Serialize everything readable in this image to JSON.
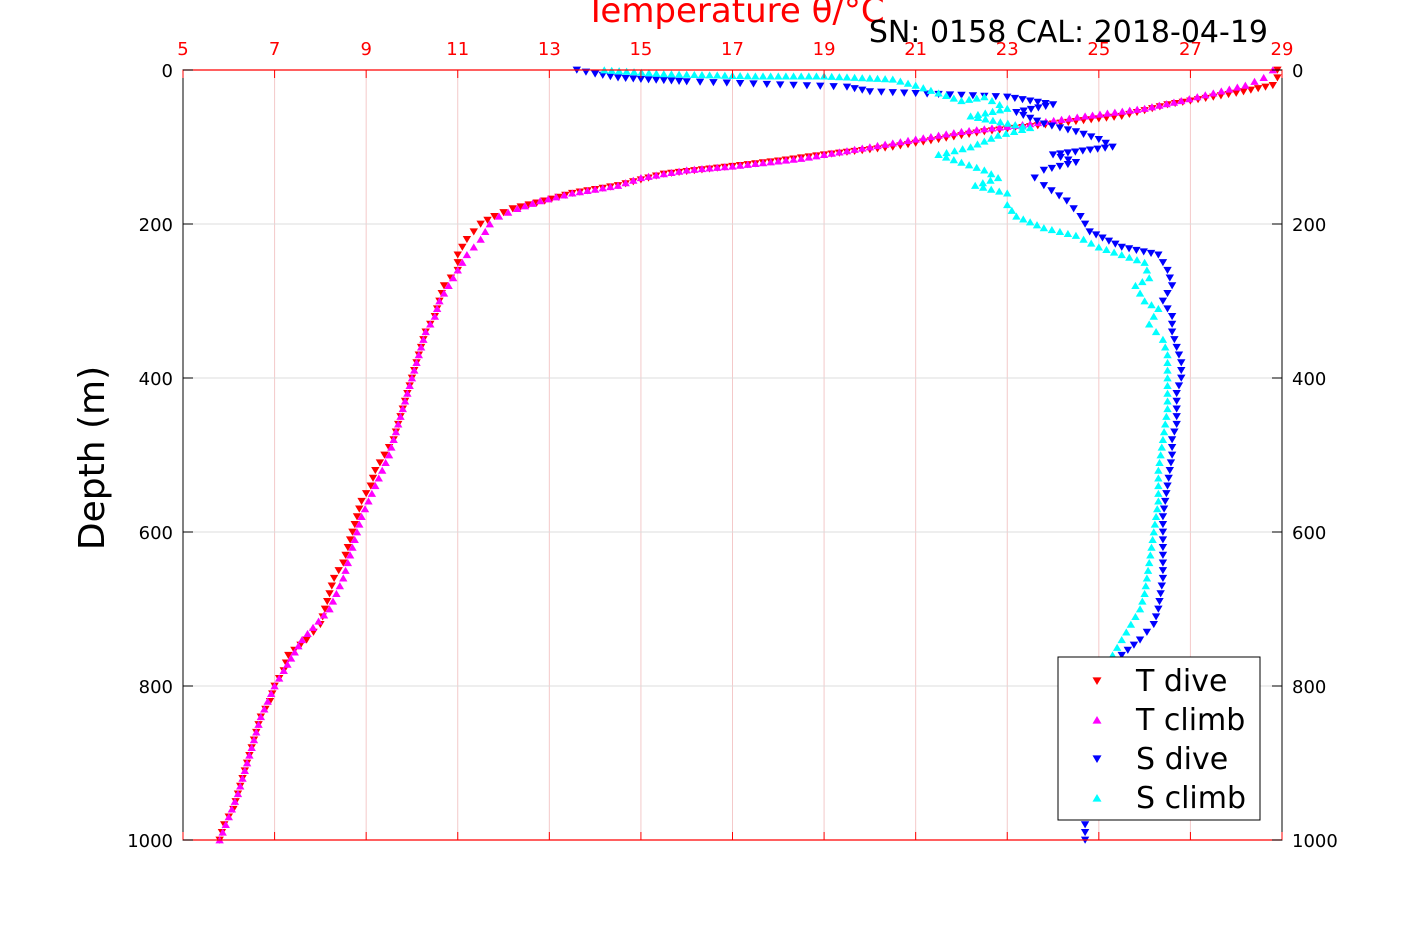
{
  "chart_data": {
    "type": "scatter",
    "title": "Temperature θ/°C",
    "subtitle": "SN: 0158  CAL: 2018-04-19",
    "ylabel": "Depth (m)",
    "xlim": [
      5,
      29
    ],
    "ylim": [
      0,
      1000
    ],
    "y_reversed": true,
    "x_ticks": [
      "5",
      "7",
      "9",
      "11",
      "13",
      "15",
      "17",
      "19",
      "21",
      "23",
      "25",
      "27",
      "29"
    ],
    "y_ticks": [
      "0",
      "200",
      "400",
      "600",
      "800",
      "1000"
    ],
    "grid": true,
    "legend_position": "bottom-right",
    "colors": {
      "t_dive": "#ff0000",
      "t_climb": "#ff00ff",
      "s_dive": "#0000ff",
      "s_climb": "#00ffff",
      "axis_top": "#ff0000",
      "grid": "#d9d9d9"
    },
    "series": [
      {
        "name": "T dive",
        "marker": "triangle-down",
        "color": "#ff0000",
        "points": [
          [
            28.9,
            0
          ],
          [
            28.9,
            10
          ],
          [
            28.8,
            20
          ],
          [
            28.0,
            30
          ],
          [
            26.5,
            45
          ],
          [
            25.5,
            60
          ],
          [
            24.0,
            70
          ],
          [
            22.5,
            80
          ],
          [
            21.5,
            90
          ],
          [
            20.5,
            100
          ],
          [
            19.0,
            110
          ],
          [
            18.0,
            118
          ],
          [
            17.0,
            125
          ],
          [
            15.5,
            135
          ],
          [
            14.5,
            150
          ],
          [
            13.5,
            160
          ],
          [
            12.9,
            170
          ],
          [
            12.2,
            180
          ],
          [
            11.8,
            190
          ],
          [
            11.5,
            200
          ],
          [
            11.2,
            220
          ],
          [
            11.0,
            240
          ],
          [
            11.0,
            260
          ],
          [
            10.7,
            280
          ],
          [
            10.6,
            300
          ],
          [
            10.5,
            320
          ],
          [
            10.3,
            340
          ],
          [
            10.2,
            360
          ],
          [
            10.1,
            380
          ],
          [
            10.0,
            400
          ],
          [
            9.9,
            420
          ],
          [
            9.8,
            440
          ],
          [
            9.7,
            460
          ],
          [
            9.6,
            480
          ],
          [
            9.4,
            500
          ],
          [
            9.2,
            520
          ],
          [
            9.1,
            540
          ],
          [
            8.9,
            560
          ],
          [
            8.8,
            580
          ],
          [
            8.7,
            600
          ],
          [
            8.6,
            620
          ],
          [
            8.5,
            640
          ],
          [
            8.3,
            660
          ],
          [
            8.2,
            680
          ],
          [
            8.1,
            700
          ],
          [
            8.0,
            720
          ],
          [
            7.7,
            740
          ],
          [
            7.3,
            760
          ],
          [
            7.2,
            780
          ],
          [
            7.0,
            800
          ],
          [
            6.9,
            820
          ],
          [
            6.7,
            840
          ],
          [
            6.6,
            860
          ],
          [
            6.5,
            880
          ],
          [
            6.4,
            900
          ],
          [
            6.3,
            920
          ],
          [
            6.2,
            940
          ],
          [
            6.1,
            960
          ],
          [
            5.9,
            980
          ],
          [
            5.8,
            1000
          ]
        ]
      },
      {
        "name": "T climb",
        "marker": "triangle-up",
        "color": "#ff00ff",
        "points": [
          [
            28.8,
            0
          ],
          [
            28.6,
            10
          ],
          [
            28.2,
            20
          ],
          [
            27.5,
            30
          ],
          [
            26.8,
            40
          ],
          [
            26.0,
            50
          ],
          [
            24.7,
            60
          ],
          [
            23.5,
            70
          ],
          [
            22.0,
            80
          ],
          [
            21.0,
            90
          ],
          [
            20.0,
            100
          ],
          [
            19.0,
            110
          ],
          [
            18.5,
            115
          ],
          [
            17.0,
            125
          ],
          [
            16.0,
            130
          ],
          [
            15.0,
            140
          ],
          [
            14.5,
            150
          ],
          [
            13.5,
            160
          ],
          [
            12.8,
            170
          ],
          [
            12.3,
            180
          ],
          [
            11.9,
            190
          ],
          [
            11.7,
            200
          ],
          [
            11.5,
            220
          ],
          [
            11.2,
            240
          ],
          [
            11.0,
            260
          ],
          [
            10.8,
            280
          ],
          [
            10.6,
            300
          ],
          [
            10.5,
            320
          ],
          [
            10.3,
            340
          ],
          [
            10.2,
            360
          ],
          [
            10.0,
            400
          ],
          [
            9.9,
            420
          ],
          [
            9.7,
            460
          ],
          [
            9.5,
            500
          ],
          [
            9.2,
            540
          ],
          [
            8.9,
            580
          ],
          [
            8.7,
            620
          ],
          [
            8.5,
            660
          ],
          [
            8.2,
            700
          ],
          [
            7.6,
            740
          ],
          [
            7.2,
            780
          ],
          [
            7.0,
            800
          ],
          [
            6.7,
            840
          ],
          [
            6.4,
            900
          ],
          [
            6.2,
            940
          ],
          [
            6.0,
            970
          ],
          [
            5.8,
            1000
          ]
        ]
      },
      {
        "name": "S dive",
        "marker": "triangle-down",
        "color": "#0000ff",
        "points": [
          [
            13.6,
            0
          ],
          [
            14.0,
            5
          ],
          [
            14.5,
            10
          ],
          [
            15.0,
            12
          ],
          [
            16.0,
            15
          ],
          [
            19.5,
            22
          ],
          [
            20.0,
            28
          ],
          [
            23.0,
            35
          ],
          [
            23.5,
            40
          ],
          [
            24.0,
            45
          ],
          [
            23.2,
            55
          ],
          [
            23.8,
            70
          ],
          [
            24.5,
            80
          ],
          [
            25.0,
            90
          ],
          [
            25.3,
            100
          ],
          [
            24.0,
            110
          ],
          [
            24.5,
            120
          ],
          [
            23.8,
            130
          ],
          [
            23.6,
            140
          ],
          [
            23.8,
            150
          ],
          [
            24.3,
            170
          ],
          [
            24.6,
            190
          ],
          [
            24.8,
            210
          ],
          [
            25.5,
            230
          ],
          [
            26.3,
            240
          ],
          [
            26.5,
            260
          ],
          [
            26.6,
            280
          ],
          [
            26.4,
            300
          ],
          [
            26.6,
            320
          ],
          [
            26.6,
            340
          ],
          [
            26.7,
            360
          ],
          [
            26.8,
            380
          ],
          [
            26.8,
            400
          ],
          [
            26.7,
            420
          ],
          [
            26.7,
            440
          ],
          [
            26.7,
            460
          ],
          [
            26.6,
            480
          ],
          [
            26.6,
            500
          ],
          [
            26.5,
            540
          ],
          [
            26.4,
            580
          ],
          [
            26.4,
            620
          ],
          [
            26.4,
            660
          ],
          [
            26.3,
            700
          ],
          [
            26.2,
            720
          ],
          [
            25.9,
            740
          ],
          [
            25.5,
            760
          ],
          [
            25.3,
            780
          ],
          [
            25.2,
            800
          ],
          [
            25.0,
            840
          ],
          [
            24.9,
            880
          ],
          [
            24.8,
            920
          ],
          [
            24.7,
            960
          ],
          [
            24.7,
            1000
          ]
        ]
      },
      {
        "name": "S climb",
        "marker": "triangle-up",
        "color": "#00ffff",
        "points": [
          [
            14.2,
            0
          ],
          [
            15.5,
            5
          ],
          [
            17.5,
            8
          ],
          [
            19.0,
            8
          ],
          [
            20.5,
            12
          ],
          [
            21.0,
            20
          ],
          [
            22.0,
            40
          ],
          [
            22.5,
            35
          ],
          [
            23.0,
            50
          ],
          [
            22.2,
            60
          ],
          [
            23.5,
            75
          ],
          [
            22.8,
            85
          ],
          [
            22.2,
            100
          ],
          [
            21.5,
            110
          ],
          [
            22.0,
            120
          ],
          [
            22.5,
            130
          ],
          [
            22.8,
            140
          ],
          [
            22.3,
            150
          ],
          [
            23.0,
            160
          ],
          [
            23.0,
            175
          ],
          [
            23.2,
            190
          ],
          [
            23.8,
            205
          ],
          [
            24.5,
            215
          ],
          [
            25.0,
            230
          ],
          [
            25.5,
            240
          ],
          [
            26.0,
            250
          ],
          [
            26.1,
            270
          ],
          [
            25.8,
            280
          ],
          [
            26.0,
            300
          ],
          [
            26.3,
            310
          ],
          [
            26.1,
            330
          ],
          [
            26.4,
            350
          ],
          [
            26.5,
            370
          ],
          [
            26.5,
            400
          ],
          [
            26.5,
            440
          ],
          [
            26.4,
            480
          ],
          [
            26.3,
            520
          ],
          [
            26.3,
            560
          ],
          [
            26.2,
            600
          ],
          [
            26.1,
            640
          ],
          [
            26.0,
            680
          ],
          [
            25.9,
            700
          ],
          [
            25.6,
            730
          ],
          [
            25.3,
            760
          ],
          [
            25.0,
            780
          ],
          [
            24.8,
            800
          ]
        ]
      }
    ]
  }
}
